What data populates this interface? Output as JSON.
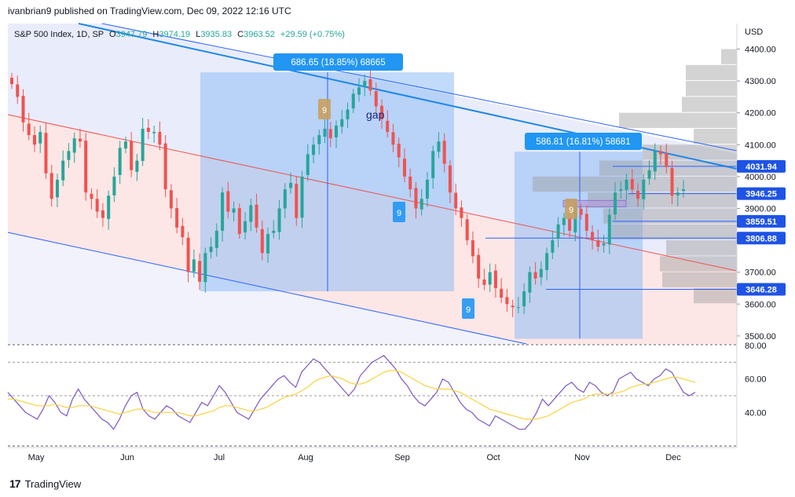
{
  "header": {
    "publisher": "ivanbrian9 published on TradingView.com, Dec 09, 2022 12:16 UTC"
  },
  "footer": {
    "brand": "TradingView"
  },
  "legend": {
    "symbol": "S&P 500 Index, 1D, SP",
    "o_label": "O",
    "o_value": "3947.79",
    "h_label": "H",
    "h_value": "3974.19",
    "l_label": "L",
    "l_value": "3935.83",
    "c_label": "C",
    "c_value": "3963.52",
    "change": "+29.59 (+0.75%)"
  },
  "colors": {
    "up": "#26a69a",
    "down": "#ef5350",
    "rsi": "#7e57c2",
    "rsi_ma": "#f5d342",
    "channel": "#2962ff",
    "label_blue": "#2962ff"
  },
  "chart_data": [
    {
      "type": "candlestick",
      "title": "S&P 500 Index, 1D, SP",
      "currency": "USD",
      "ylim": [
        3500,
        4450
      ],
      "y_ticks": [
        "4400.00",
        "4300.00",
        "4200.00",
        "4100.00",
        "4000.00",
        "3900.00",
        "3800.00",
        "3700.00",
        "3600.00",
        "3500.00"
      ],
      "x_labels": [
        "May",
        "Jun",
        "Jul",
        "Aug",
        "Sep",
        "Oct",
        "Nov",
        "Dec"
      ],
      "price_labels": [
        "4031.94",
        "3946.25",
        "3859.51",
        "3806.88",
        "3646.28"
      ],
      "measure_boxes": [
        {
          "label": "686.65 (18.85%) 68665",
          "from": 3640,
          "to": 4327
        },
        {
          "label": "586.81 (16.81%) 58681",
          "from": 3491,
          "to": 4078
        }
      ],
      "annotations": [
        "gap",
        "9",
        "9",
        "9",
        "9"
      ],
      "closes_approx": [
        4290,
        4250,
        4170,
        4130,
        4100,
        4140,
        4010,
        3930,
        3990,
        4050,
        4080,
        4120,
        4110,
        3950,
        3930,
        3890,
        3870,
        3940,
        4000,
        4090,
        4110,
        4020,
        4050,
        4150,
        4140,
        4140,
        4100,
        3960,
        3900,
        3840,
        3810,
        3700,
        3740,
        3670,
        3760,
        3780,
        3830,
        3950,
        3890,
        3900,
        3820,
        3860,
        3910,
        3840,
        3760,
        3820,
        3830,
        3900,
        3960,
        3980,
        3870,
        4000,
        4070,
        4100,
        4130,
        4150,
        4120,
        4160,
        4180,
        4210,
        4260,
        4280,
        4300,
        4270,
        4220,
        4180,
        4140,
        4100,
        4060,
        4000,
        3960,
        3900,
        3930,
        3990,
        4080,
        4110,
        4040,
        3950,
        3900,
        3870,
        3800,
        3750,
        3680,
        3660,
        3700,
        3650,
        3620,
        3600,
        3590,
        3590,
        3640,
        3700,
        3680,
        3710,
        3760,
        3800,
        3850,
        3870,
        3830,
        3900,
        3880,
        3830,
        3800,
        3780,
        3790,
        3880,
        3950,
        3960,
        3990,
        3960,
        3930,
        3990,
        4020,
        4080,
        4070,
        4030,
        3940,
        3950,
        3960
      ],
      "volume_profile_levels": [
        3600,
        3650,
        3700,
        3750,
        3800,
        3850,
        3900,
        3950,
        4000,
        4050,
        4100,
        4150,
        4200,
        4250,
        4300,
        4350
      ],
      "volume_profile_values": [
        55,
        95,
        98,
        90,
        160,
        170,
        190,
        260,
        175,
        120,
        55,
        150,
        70,
        65,
        65,
        20
      ]
    },
    {
      "type": "line",
      "title": "RSI",
      "ylim": [
        20,
        80
      ],
      "y_ticks": [
        "80.00",
        "60.00",
        "40.00"
      ],
      "series": [
        {
          "name": "",
          "values": [
            52,
            48,
            44,
            40,
            38,
            36,
            42,
            50,
            46,
            40,
            38,
            48,
            54,
            48,
            44,
            40,
            36,
            34,
            30,
            36,
            44,
            50,
            52,
            42,
            38,
            36,
            40,
            44,
            42,
            38,
            36,
            34,
            40,
            46,
            44,
            50,
            56,
            52,
            46,
            40,
            38,
            36,
            42,
            48,
            52,
            56,
            60,
            62,
            58,
            55,
            64,
            68,
            72,
            70,
            66,
            62,
            58,
            54,
            50,
            54,
            62,
            66,
            70,
            72,
            74,
            70,
            66,
            60,
            56,
            50,
            46,
            44,
            48,
            52,
            60,
            58,
            52,
            46,
            42,
            40,
            36,
            34,
            32,
            38,
            36,
            34,
            32,
            30,
            30,
            34,
            40,
            48,
            44,
            48,
            52,
            56,
            58,
            54,
            52,
            58,
            56,
            52,
            50,
            52,
            60,
            62,
            64,
            60,
            58,
            56,
            60,
            62,
            66,
            64,
            58,
            52,
            50,
            52
          ]
        },
        {
          "name": "",
          "values": [
            48,
            48,
            47,
            46,
            45,
            44,
            44,
            44,
            45,
            44,
            43,
            43,
            44,
            44,
            44,
            43,
            42,
            41,
            40,
            39,
            40,
            41,
            42,
            42,
            41,
            40,
            40,
            40,
            40,
            40,
            39,
            38,
            38,
            39,
            40,
            41,
            43,
            44,
            44,
            43,
            42,
            41,
            41,
            42,
            43,
            45,
            47,
            49,
            50,
            51,
            53,
            55,
            58,
            60,
            61,
            62,
            61,
            60,
            58,
            57,
            57,
            58,
            60,
            62,
            64,
            65,
            65,
            64,
            62,
            60,
            58,
            56,
            55,
            54,
            54,
            54,
            53,
            52,
            50,
            48,
            46,
            44,
            42,
            41,
            40,
            39,
            38,
            37,
            36,
            36,
            36,
            37,
            38,
            40,
            42,
            44,
            46,
            47,
            48,
            50,
            51,
            51,
            51,
            51,
            52,
            53,
            55,
            56,
            57,
            57,
            58,
            59,
            60,
            61,
            61,
            60,
            59,
            58
          ]
        }
      ]
    }
  ]
}
